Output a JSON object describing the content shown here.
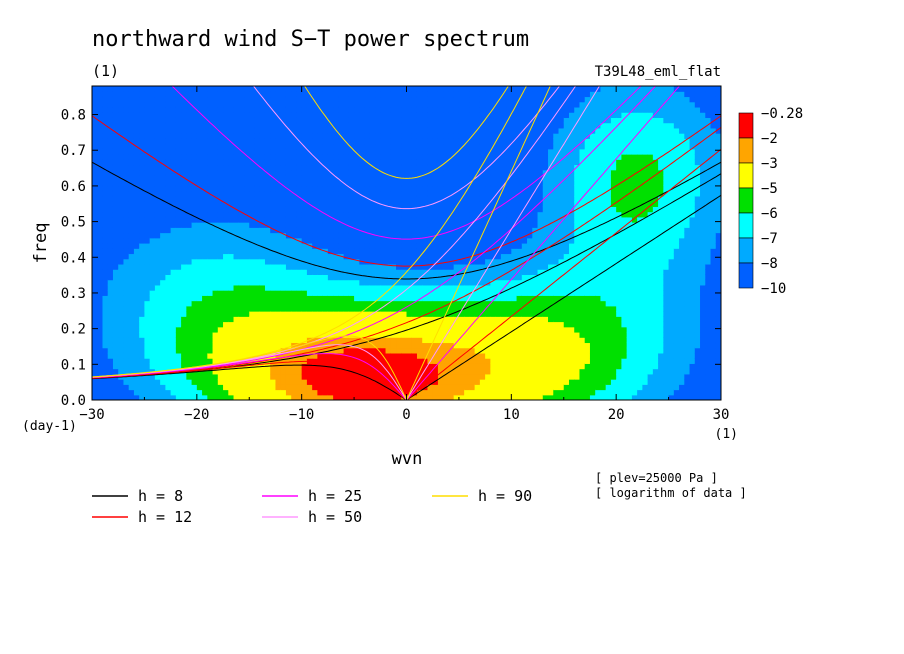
{
  "chart_data": {
    "type": "heatmap",
    "title": "northward wind S−T power spectrum",
    "subtitle_left": "(1)",
    "subtitle_right": "T39L48_eml_flat",
    "xlabel": "wvn",
    "ylabel": "freq",
    "x_unit": "(1)",
    "y_unit": "(day-1)",
    "xlim": [
      -30,
      30
    ],
    "ylim": [
      0,
      0.88
    ],
    "x_ticks": [
      -30,
      -20,
      -10,
      0,
      10,
      20,
      30
    ],
    "y_ticks": [
      0.0,
      0.1,
      0.2,
      0.3,
      0.4,
      0.5,
      0.6,
      0.7,
      0.8
    ],
    "x_tick_labels": [
      "−30",
      "−20",
      "−10",
      "0",
      "10",
      "20",
      "30"
    ],
    "y_tick_labels": [
      "0.0",
      "0.1",
      "0.2",
      "0.3",
      "0.4",
      "0.5",
      "0.6",
      "0.7",
      "0.8"
    ],
    "colorbar": {
      "labels": [
        "−0.28",
        "−2",
        "−3",
        "−5",
        "−6",
        "−7",
        "−8",
        "−10"
      ],
      "colors": [
        "#ff0000",
        "#ffa500",
        "#ffff00",
        "#00e000",
        "#00ffff",
        "#00aaff",
        "#0060ff"
      ]
    },
    "field_levels": [
      -0.28,
      -2,
      -3,
      -5,
      -6,
      -7,
      -8,
      -10
    ],
    "field_colors": [
      "#ff0000",
      "#ffa500",
      "#ffff00",
      "#00e000",
      "#00ffff",
      "#00aaff",
      "#0060ff"
    ],
    "dispersion_curves": [
      {
        "label": "h =  8",
        "h": 8,
        "color": "#000000"
      },
      {
        "label": "h = 12",
        "h": 12,
        "color": "#ff0000"
      },
      {
        "label": "h = 25",
        "h": 25,
        "color": "#ff00ff"
      },
      {
        "label": "h = 50",
        "h": 50,
        "color": "#ff99ff"
      },
      {
        "label": "h = 90",
        "h": 90,
        "color": "#ffdd00"
      }
    ],
    "notes": [
      "[ plev=25000 Pa ]",
      "[ logarithm of data ]"
    ]
  }
}
